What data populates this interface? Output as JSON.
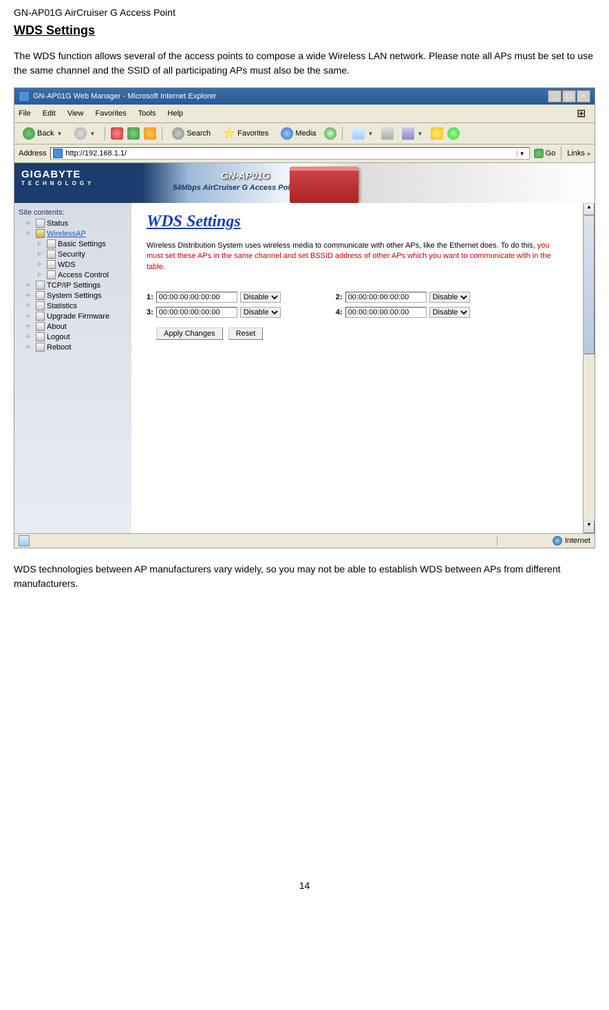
{
  "doc": {
    "header": "GN-AP01G AirCruiser G Access Point",
    "title": "WDS Settings",
    "intro": "The WDS function allows several of the access points to compose a wide Wireless LAN network. Please note all APs must be set to use the same channel and the SSID of all participating APs must also be the same.",
    "outro": "WDS technologies between AP manufacturers vary widely, so you may not be able to establish WDS between APs from different manufacturers.",
    "page": "14"
  },
  "browser": {
    "title": "GN-AP01G Web Manager - Microsoft Internet Explorer",
    "window_controls": [
      "_",
      "▢",
      "×"
    ],
    "menus": [
      "File",
      "Edit",
      "View",
      "Favorites",
      "Tools",
      "Help"
    ],
    "toolbar": {
      "back": "Back",
      "search": "Search",
      "favorites": "Favorites",
      "media": "Media"
    },
    "address_label": "Address",
    "address_value": "http://192.168.1.1/",
    "go": "Go",
    "links": "Links",
    "status_zone": "Internet"
  },
  "banner": {
    "brand": "GIGABYTE",
    "brand_sub": "TECHNOLOGY",
    "product": "GN-AP01G",
    "product_sub": "54Mbps AirCruiser G Access Point"
  },
  "sidebar": {
    "root": "Site contents:",
    "items": [
      {
        "label": "Status",
        "indent": 1
      },
      {
        "label": "WirelessAP",
        "indent": 1,
        "folder": true,
        "active": true
      },
      {
        "label": "Basic Settings",
        "indent": 2
      },
      {
        "label": "Security",
        "indent": 2
      },
      {
        "label": "WDS",
        "indent": 2
      },
      {
        "label": "Access Control",
        "indent": 2
      },
      {
        "label": "TCP/IP Settings",
        "indent": 1
      },
      {
        "label": "System Settings",
        "indent": 1
      },
      {
        "label": "Statistics",
        "indent": 1
      },
      {
        "label": "Upgrade Firmware",
        "indent": 1
      },
      {
        "label": "About",
        "indent": 1
      },
      {
        "label": "Logout",
        "indent": 1
      },
      {
        "label": "Reboot",
        "indent": 1
      }
    ]
  },
  "panel": {
    "title": "WDS Settings",
    "desc_pre": "Wireless Distribution System uses wireless media to communicate with other APs, like the Ethernet does. To do this, ",
    "desc_warn": "you must set these APs in the same channel and set BSSID address of other APs which you want to communicate with in the table.",
    "fields": {
      "f1_label": "1:",
      "f1_val": "00:00:00:00:00:00",
      "f1_sel": "Disable",
      "f2_label": "2:",
      "f2_val": "00:00:00:00:00:00",
      "f2_sel": "Disable",
      "f3_label": "3:",
      "f3_val": "00:00:00:00:00:00",
      "f3_sel": "Disable",
      "f4_label": "4:",
      "f4_val": "00:00:00:00:00:00",
      "f4_sel": "Disable"
    },
    "apply": "Apply Changes",
    "reset": "Reset"
  }
}
